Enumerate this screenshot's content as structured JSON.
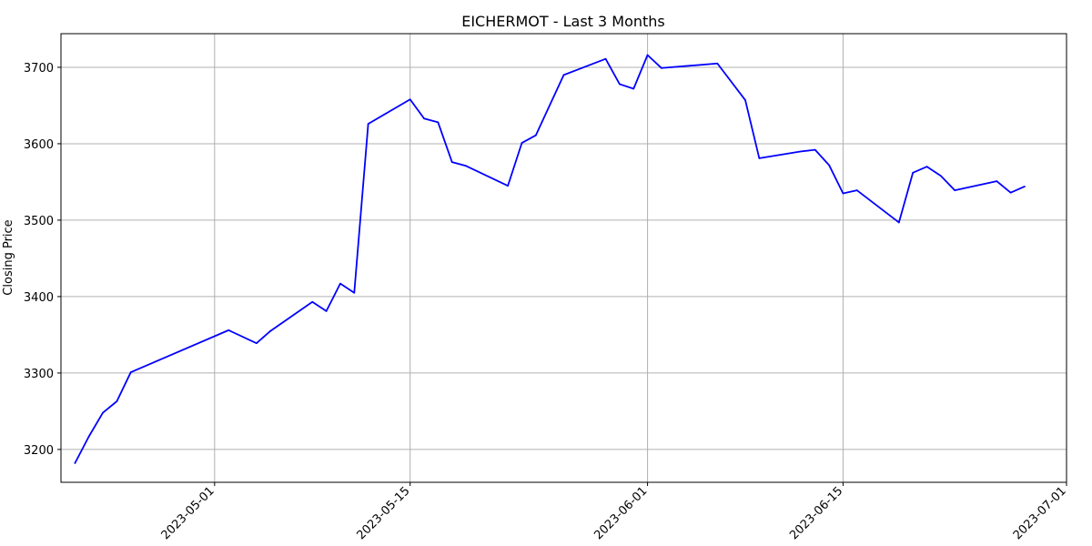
{
  "chart_data": {
    "type": "line",
    "title": "EICHERMOT - Last 3 Months",
    "xlabel": "",
    "ylabel": "Closing Price",
    "x_ticks": [
      "2023-05-01",
      "2023-05-15",
      "2023-06-01",
      "2023-06-15",
      "2023-07-01"
    ],
    "y_ticks": [
      3200,
      3300,
      3400,
      3500,
      3600,
      3700
    ],
    "xlim": [
      "2023-04-20",
      "2023-07-01"
    ],
    "ylim": [
      3157,
      3744
    ],
    "grid": true,
    "line_color": "#0000ff",
    "series": [
      {
        "x": [
          "2023-04-21",
          "2023-04-22",
          "2023-04-23",
          "2023-04-24",
          "2023-04-25",
          "2023-05-02",
          "2023-05-04",
          "2023-05-05",
          "2023-05-08",
          "2023-05-09",
          "2023-05-10",
          "2023-05-11",
          "2023-05-12",
          "2023-05-15",
          "2023-05-16",
          "2023-05-17",
          "2023-05-18",
          "2023-05-19",
          "2023-05-22",
          "2023-05-23",
          "2023-05-24",
          "2023-05-26",
          "2023-05-29",
          "2023-05-30",
          "2023-05-31",
          "2023-06-01",
          "2023-06-02",
          "2023-06-06",
          "2023-06-08",
          "2023-06-09",
          "2023-06-12",
          "2023-06-13",
          "2023-06-14",
          "2023-06-15",
          "2023-06-16",
          "2023-06-19",
          "2023-06-20",
          "2023-06-21",
          "2023-06-22",
          "2023-06-23",
          "2023-06-26",
          "2023-06-27",
          "2023-06-28"
        ],
        "values": [
          3182,
          3217,
          3248,
          3263,
          3301,
          3356,
          3339,
          3355,
          3393,
          3381,
          3417,
          3405,
          3626,
          3658,
          3633,
          3628,
          3576,
          3571,
          3545,
          3601,
          3611,
          3690,
          3711,
          3678,
          3672,
          3716,
          3699,
          3705,
          3657,
          3581,
          3590,
          3592,
          3572,
          3535,
          3539,
          3497,
          3562,
          3570,
          3558,
          3539,
          3551,
          3536,
          3544
        ]
      }
    ]
  }
}
